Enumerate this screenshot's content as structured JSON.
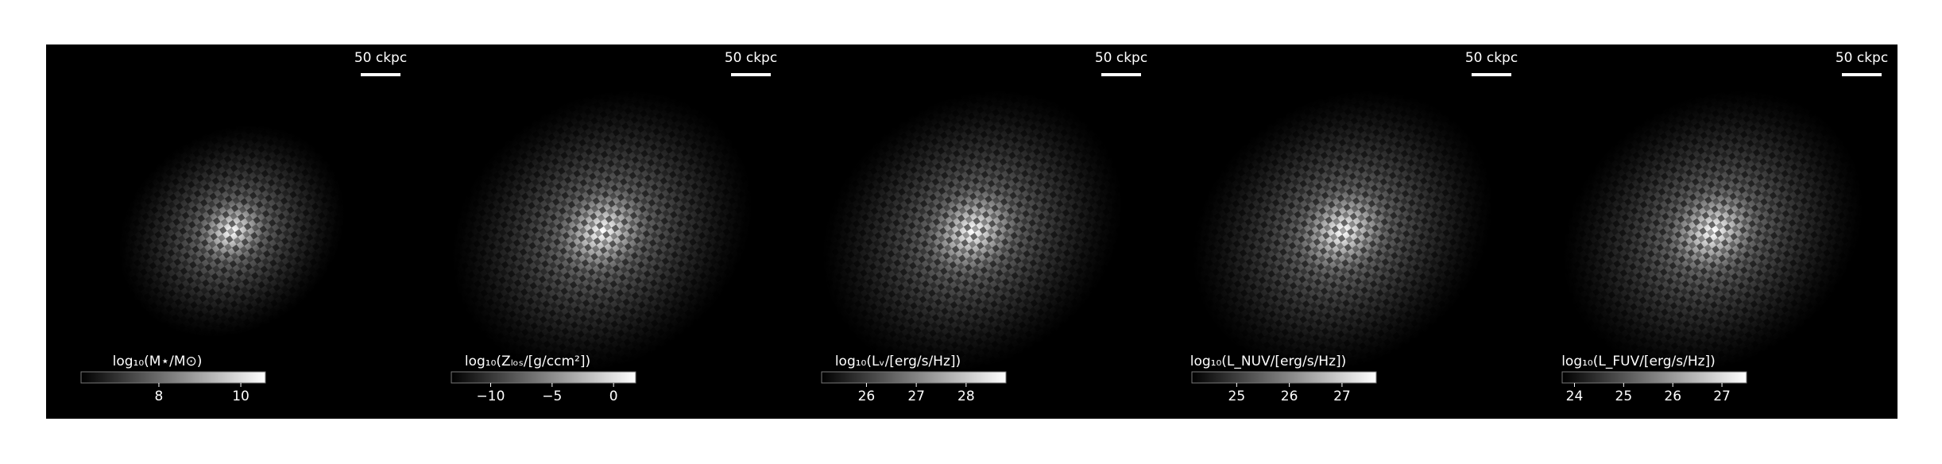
{
  "chart_data": [
    {
      "type": "image",
      "scale_bar_label": "50 ckpc",
      "colorbar_label": "log₁₀(M⋆/M⊙)",
      "clim": [
        6.1,
        10.6
      ],
      "cticks": [
        8,
        10
      ]
    },
    {
      "type": "image",
      "scale_bar_label": "50 ckpc",
      "colorbar_label": "log₁₀(Zₗₒₛ/[g/ccm²])",
      "clim": [
        -13.2,
        1.8
      ],
      "cticks": [
        {
          "value": -10,
          "label": "−10"
        },
        {
          "value": -5,
          "label": "−5"
        },
        0
      ]
    },
    {
      "type": "image",
      "scale_bar_label": "50 ckpc",
      "colorbar_label": "log₁₀(Lᵥ/[erg/s/Hz])",
      "clim": [
        25.1,
        28.8
      ],
      "cticks": [
        26,
        27,
        28
      ]
    },
    {
      "type": "image",
      "scale_bar_label": "50 ckpc",
      "colorbar_label": "log₁₀(L_NUV/[erg/s/Hz])",
      "clim": [
        24.15,
        27.65
      ],
      "cticks": [
        25,
        26,
        27
      ]
    },
    {
      "type": "image",
      "scale_bar_label": "50 ckpc",
      "colorbar_label": "log₁₀(L_FUV/[erg/s/Hz])",
      "clim": [
        23.75,
        27.5
      ],
      "cticks": [
        24,
        25,
        26,
        27
      ]
    }
  ]
}
